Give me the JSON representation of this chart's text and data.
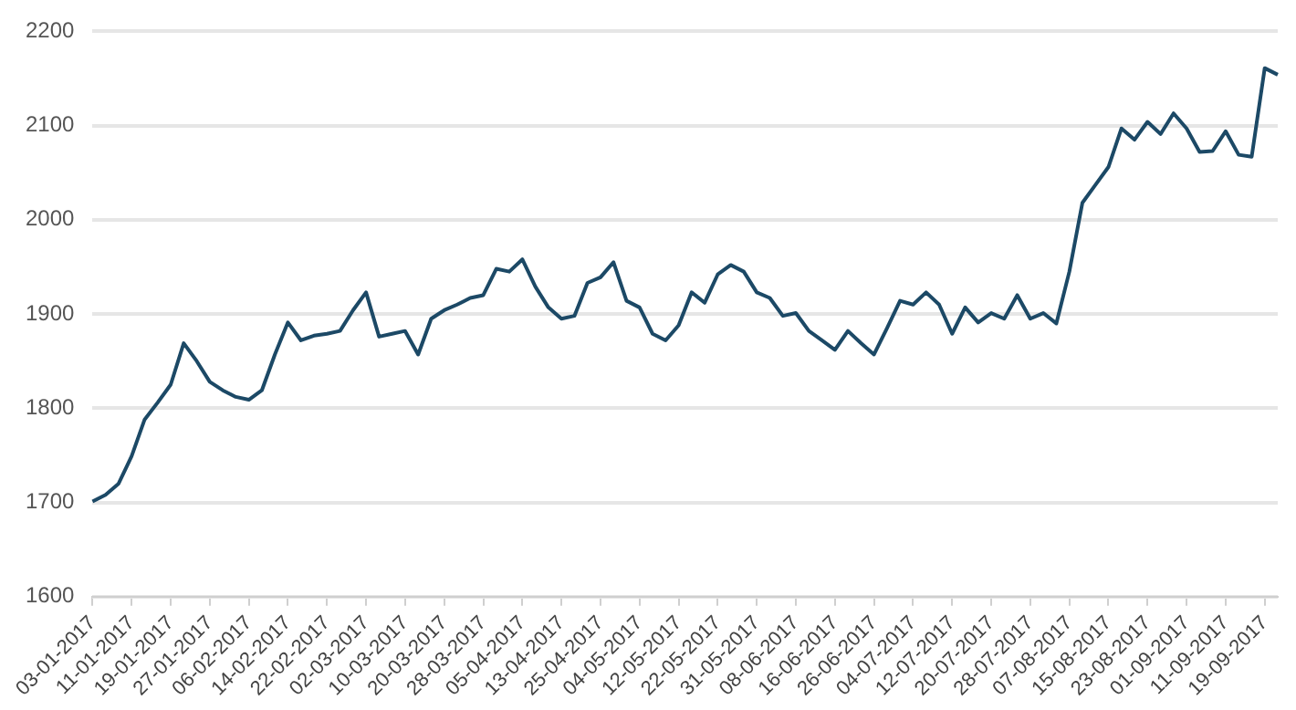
{
  "chart_data": {
    "type": "line",
    "categories": [
      "03-01-2017",
      null,
      null,
      "11-01-2017",
      null,
      null,
      "19-01-2017",
      null,
      null,
      "27-01-2017",
      null,
      null,
      "06-02-2017",
      null,
      null,
      "14-02-2017",
      null,
      null,
      "22-02-2017",
      null,
      null,
      "02-03-2017",
      null,
      null,
      "10-03-2017",
      null,
      null,
      "20-03-2017",
      null,
      null,
      "28-03-2017",
      null,
      null,
      "05-04-2017",
      null,
      null,
      "13-04-2017",
      null,
      null,
      "25-04-2017",
      null,
      null,
      "04-05-2017",
      null,
      null,
      "12-05-2017",
      null,
      null,
      "22-05-2017",
      null,
      null,
      "31-05-2017",
      null,
      null,
      "08-06-2017",
      null,
      null,
      "16-06-2017",
      null,
      null,
      "26-06-2017",
      null,
      null,
      "04-07-2017",
      null,
      null,
      "12-07-2017",
      null,
      null,
      "20-07-2017",
      null,
      null,
      "28-07-2017",
      null,
      null,
      "07-08-2017",
      null,
      null,
      "15-08-2017",
      null,
      null,
      "23-08-2017",
      null,
      null,
      "01-09-2017",
      null,
      null,
      "11-09-2017",
      null,
      null,
      "19-09-2017",
      null
    ],
    "series": [
      {
        "color": "#1c4966",
        "values": [
          1701,
          1708,
          1720,
          1749,
          1788,
          1806,
          1825,
          1869,
          1850,
          1828,
          1819,
          1812,
          1809,
          1819,
          1857,
          1891,
          1872,
          1877,
          1879,
          1882,
          1904,
          1923,
          1876,
          1879,
          1882,
          1857,
          1895,
          1904,
          1910,
          1917,
          1920,
          1948,
          1945,
          1958,
          1929,
          1907,
          1895,
          1898,
          1933,
          1939,
          1955,
          1914,
          1907,
          1879,
          1872,
          1888,
          1923,
          1912,
          1942,
          1952,
          1945,
          1923,
          1917,
          1898,
          1901,
          1882,
          1872,
          1862,
          1882,
          1869,
          1857,
          1885,
          1914,
          1910,
          1923,
          1910,
          1879,
          1907,
          1891,
          1901,
          1895,
          1920,
          1895,
          1901,
          1890,
          1945,
          2018,
          2037,
          2056,
          2097,
          2085,
          2104,
          2091,
          2113,
          2097,
          2072,
          2073,
          2094,
          2069,
          2067,
          2161,
          2154
        ]
      }
    ],
    "ylim": [
      1600,
      2200
    ],
    "yticks": [
      1600,
      1700,
      1800,
      1900,
      2000,
      2100,
      2200
    ],
    "grid": "y",
    "legend": false,
    "marker": "none",
    "line_style": "solid"
  }
}
